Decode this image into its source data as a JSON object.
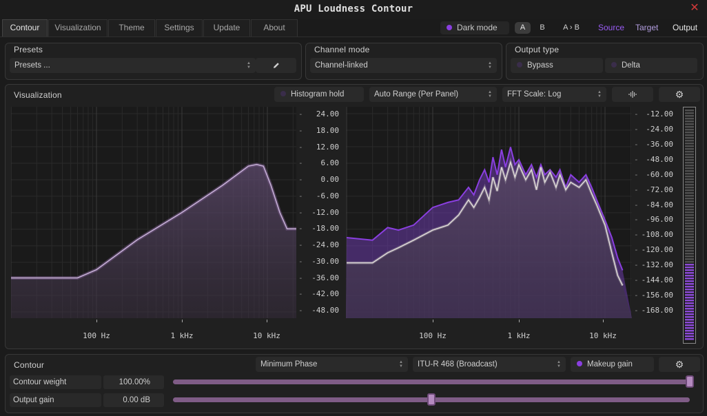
{
  "app": {
    "title": "APU Loudness Contour"
  },
  "tabs": [
    "Contour",
    "Visualization",
    "Theme",
    "Settings",
    "Update",
    "About"
  ],
  "header": {
    "dark_mode": "Dark mode",
    "ab": [
      "A",
      "B",
      "A › B"
    ],
    "modes": [
      "Source",
      "Target",
      "Output"
    ]
  },
  "presets": {
    "label": "Presets",
    "value": "Presets ..."
  },
  "channel": {
    "label": "Channel mode",
    "value": "Channel-linked"
  },
  "output": {
    "label": "Output type",
    "options": [
      "Bypass",
      "Delta"
    ]
  },
  "visualization": {
    "label": "Visualization",
    "histogram": "Histogram hold",
    "range": "Auto Range (Per Panel)",
    "fft": "FFT Scale: Log"
  },
  "contour_graph": {
    "y_ticks": [
      "24.00",
      "18.00",
      "12.00",
      "6.00",
      "0.00",
      "-6.00",
      "-12.00",
      "-18.00",
      "-24.00",
      "-30.00",
      "-36.00",
      "-42.00",
      "-48.00"
    ],
    "x_ticks": [
      "100 Hz",
      "1 kHz",
      "10 kHz"
    ]
  },
  "spectrum_graph": {
    "y_ticks": [
      "-12.00",
      "-24.00",
      "-36.00",
      "-48.00",
      "-60.00",
      "-72.00",
      "-84.00",
      "-96.00",
      "-108.00",
      "-120.00",
      "-132.00",
      "-144.00",
      "-156.00",
      "-168.00"
    ],
    "x_ticks": [
      "100 Hz",
      "1 kHz",
      "10 kHz"
    ]
  },
  "contour": {
    "label": "Contour",
    "phase": "Minimum Phase",
    "curve": "ITU-R 468 (Broadcast)",
    "makeup": "Makeup gain",
    "rows": [
      {
        "label": "Contour weight",
        "value": "100.00%",
        "fraction": 1.0
      },
      {
        "label": "Output gain",
        "value": "0.00 dB",
        "fraction": 0.5
      }
    ]
  },
  "colors": {
    "accent": "#8a3fe0",
    "close": "#d33a3a",
    "slider": "#7f5c86"
  },
  "icons": [
    "close-icon",
    "pencil-icon",
    "waveform-icon",
    "gear-icon"
  ]
}
